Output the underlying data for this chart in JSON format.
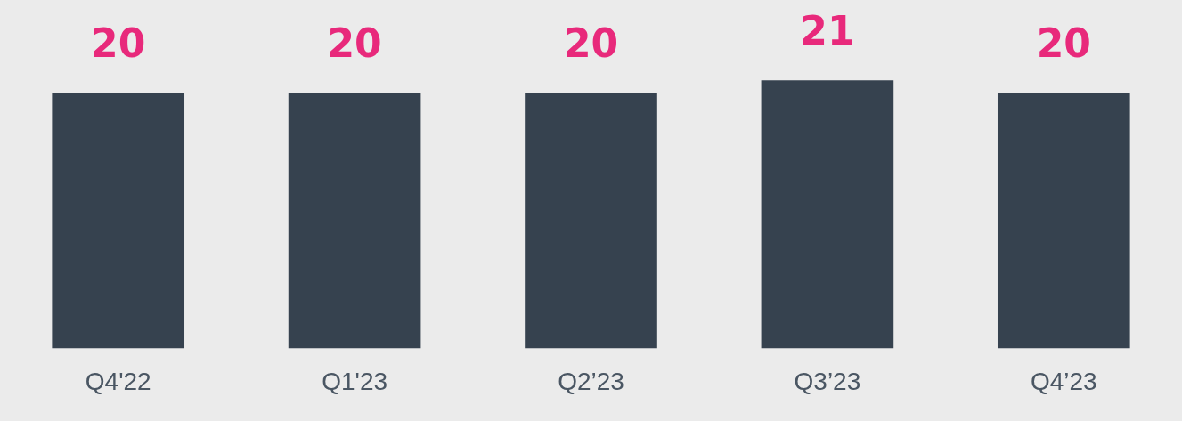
{
  "chart_data": {
    "type": "bar",
    "categories": [
      "Q4'22",
      "Q1'23",
      "Q2’23",
      "Q3’23",
      "Q4’23"
    ],
    "values": [
      20,
      20,
      20,
      21,
      20
    ],
    "color": "#36424f",
    "data_labels": true,
    "grid": false,
    "legend": false
  }
}
